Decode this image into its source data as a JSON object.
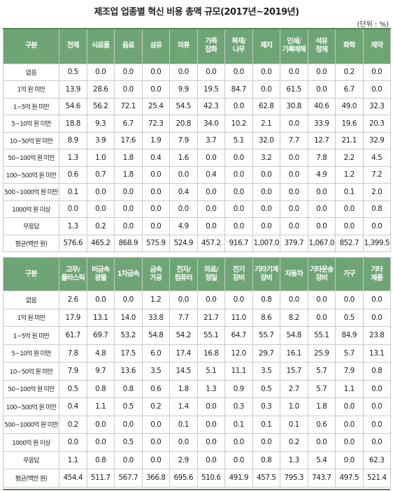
{
  "title": "제조업 업종별 혁신 비용 총액 규모(2017년~2019년)",
  "unit": "(단위 : %)",
  "table1": {
    "headers": [
      "구분",
      "전체",
      "식료품",
      "음료",
      "섬유",
      "의류",
      "가죽\n잡화",
      "목재/\n나무",
      "제지",
      "인쇄/\n기록매체",
      "석유\n정제",
      "화학",
      "제약"
    ],
    "rows": [
      {
        "label": "없음",
        "values": [
          "0.5",
          "0.0",
          "0.0",
          "0.0",
          "0.0",
          "0.0",
          "0.0",
          "0.0",
          "0.0",
          "0.0",
          "0.2",
          "0.0"
        ]
      },
      {
        "label": "1억 원 미만",
        "values": [
          "13.9",
          "28.6",
          "0.0",
          "0.0",
          "9.9",
          "19.5",
          "84.7",
          "0.0",
          "61.5",
          "0.0",
          "6.7",
          "0.0"
        ]
      },
      {
        "label": "1~5억 원 미만",
        "values": [
          "54.6",
          "56.2",
          "72.1",
          "25.4",
          "54.5",
          "42.3",
          "0.0",
          "62.8",
          "30.8",
          "40.6",
          "49.0",
          "32.3"
        ]
      },
      {
        "label": "5~10억 원 미만",
        "values": [
          "18.8",
          "9.3",
          "6.7",
          "72.3",
          "20.8",
          "34.0",
          "10.2",
          "2.1",
          "0.0",
          "33.9",
          "19.6",
          "20.3"
        ]
      },
      {
        "label": "10~50억 원 미만",
        "values": [
          "8.9",
          "3.9",
          "17.6",
          "1.9",
          "7.9",
          "3.7",
          "5.1",
          "32.0",
          "7.7",
          "12.7",
          "21.1",
          "32.9"
        ]
      },
      {
        "label": "50~100억 원 미만",
        "values": [
          "1.3",
          "1.0",
          "1.8",
          "0.4",
          "1.6",
          "0.0",
          "0.0",
          "3.2",
          "0.0",
          "7.8",
          "2.2",
          "4.5"
        ]
      },
      {
        "label": "100~500억 원 미만",
        "values": [
          "0.6",
          "0.7",
          "1.8",
          "0.0",
          "0.0",
          "0.4",
          "0.0",
          "0.0",
          "0.0",
          "4.9",
          "1.2",
          "7.2"
        ]
      },
      {
        "label": "500~1000억 원 미만",
        "values": [
          "0.1",
          "0.0",
          "0.0",
          "0.0",
          "0.4",
          "0.0",
          "0.0",
          "0.0",
          "0.0",
          "0.0",
          "0.1",
          "2.0"
        ]
      },
      {
        "label": "1000억 원 이상",
        "values": [
          "0.0",
          "0.0",
          "0.0",
          "0.0",
          "0.0",
          "0.0",
          "0.0",
          "0.0",
          "0.0",
          "0.0",
          "0.0",
          "0.8"
        ]
      },
      {
        "label": "무응답",
        "values": [
          "1.3",
          "0.2",
          "0.0",
          "0.0",
          "4.9",
          "0.0",
          "0.0",
          "0.0",
          "0.0",
          "0.0",
          "0.0",
          "0.0"
        ]
      },
      {
        "label": "평균(백만 원)",
        "values": [
          "576.6",
          "465.2",
          "868.9",
          "575.9",
          "524.9",
          "457.2",
          "916.7",
          "1,007.0",
          "379.7",
          "1,067.0",
          "852.7",
          "1,399.5"
        ]
      }
    ]
  },
  "table2": {
    "headers": [
      "구분",
      "고무/\n플라스틱",
      "비금속\n광물",
      "1차금속",
      "금속\n가공",
      "전자/\n컴퓨터",
      "의료/\n정밀",
      "전기\n장비",
      "기타기계\n장비",
      "자동차",
      "기타운송\n장비",
      "가구",
      "기타\n제품"
    ],
    "rows": [
      {
        "label": "없음",
        "values": [
          "2.6",
          "0.0",
          "0.0",
          "1.2",
          "0.0",
          "0.0",
          "0.0",
          "0.8",
          "0.0",
          "0.0",
          "0.0",
          "0.0"
        ]
      },
      {
        "label": "1억 원 미만",
        "values": [
          "17.9",
          "13.1",
          "14.0",
          "33.8",
          "7.7",
          "21.7",
          "11.0",
          "8.6",
          "8.2",
          "0.0",
          "0.5",
          "0.0"
        ]
      },
      {
        "label": "1~5억 원 미만",
        "values": [
          "61.7",
          "69.7",
          "53.2",
          "54.8",
          "54.2",
          "55.1",
          "64.7",
          "55.7",
          "54.8",
          "55.1",
          "84.9",
          "23.8"
        ]
      },
      {
        "label": "5~10억 원 미만",
        "values": [
          "7.8",
          "4.8",
          "17.5",
          "6.0",
          "17.4",
          "16.8",
          "12.0",
          "29.7",
          "16.1",
          "25.9",
          "5.7",
          "13.1"
        ]
      },
      {
        "label": "10~50억 원 미만",
        "values": [
          "7.9",
          "9.7",
          "13.6",
          "3.5",
          "14.5",
          "5.1",
          "11.1",
          "3.5",
          "15.7",
          "5.7",
          "7.9",
          "0.8"
        ]
      },
      {
        "label": "50~100억 원 미만",
        "values": [
          "0.5",
          "0.8",
          "0.8",
          "0.6",
          "1.8",
          "1.3",
          "0.9",
          "0.5",
          "2.7",
          "5.7",
          "1.1",
          "0.0"
        ]
      },
      {
        "label": "100~500억 원 미만",
        "values": [
          "0.4",
          "1.1",
          "0.5",
          "0.2",
          "1.4",
          "0.0",
          "0.3",
          "0.3",
          "1.0",
          "1.8",
          "0.0",
          "0.0"
        ]
      },
      {
        "label": "500~1000억 원 미만",
        "values": [
          "0.2",
          "0.0",
          "0.0",
          "0.0",
          "0.1",
          "0.0",
          "0.1",
          "0.1",
          "0.1",
          "0.6",
          "0.0",
          "0.0"
        ]
      },
      {
        "label": "1000억 원 이상",
        "values": [
          "0.0",
          "0.0",
          "0.5",
          "0.0",
          "0.0",
          "0.0",
          "0.0",
          "0.0",
          "0.2",
          "0.0",
          "0.0",
          "0.0"
        ]
      },
      {
        "label": "무응답",
        "values": [
          "1.1",
          "0.8",
          "0.0",
          "0.0",
          "2.9",
          "0.0",
          "0.0",
          "0.8",
          "1.3",
          "5.4",
          "0.0",
          "62.3"
        ]
      },
      {
        "label": "평균(백만 원)",
        "values": [
          "454.4",
          "511.7",
          "567.7",
          "366.8",
          "695.6",
          "510.6",
          "491.9",
          "457.5",
          "795.3",
          "743.7",
          "497.5",
          "521.4"
        ]
      }
    ]
  }
}
